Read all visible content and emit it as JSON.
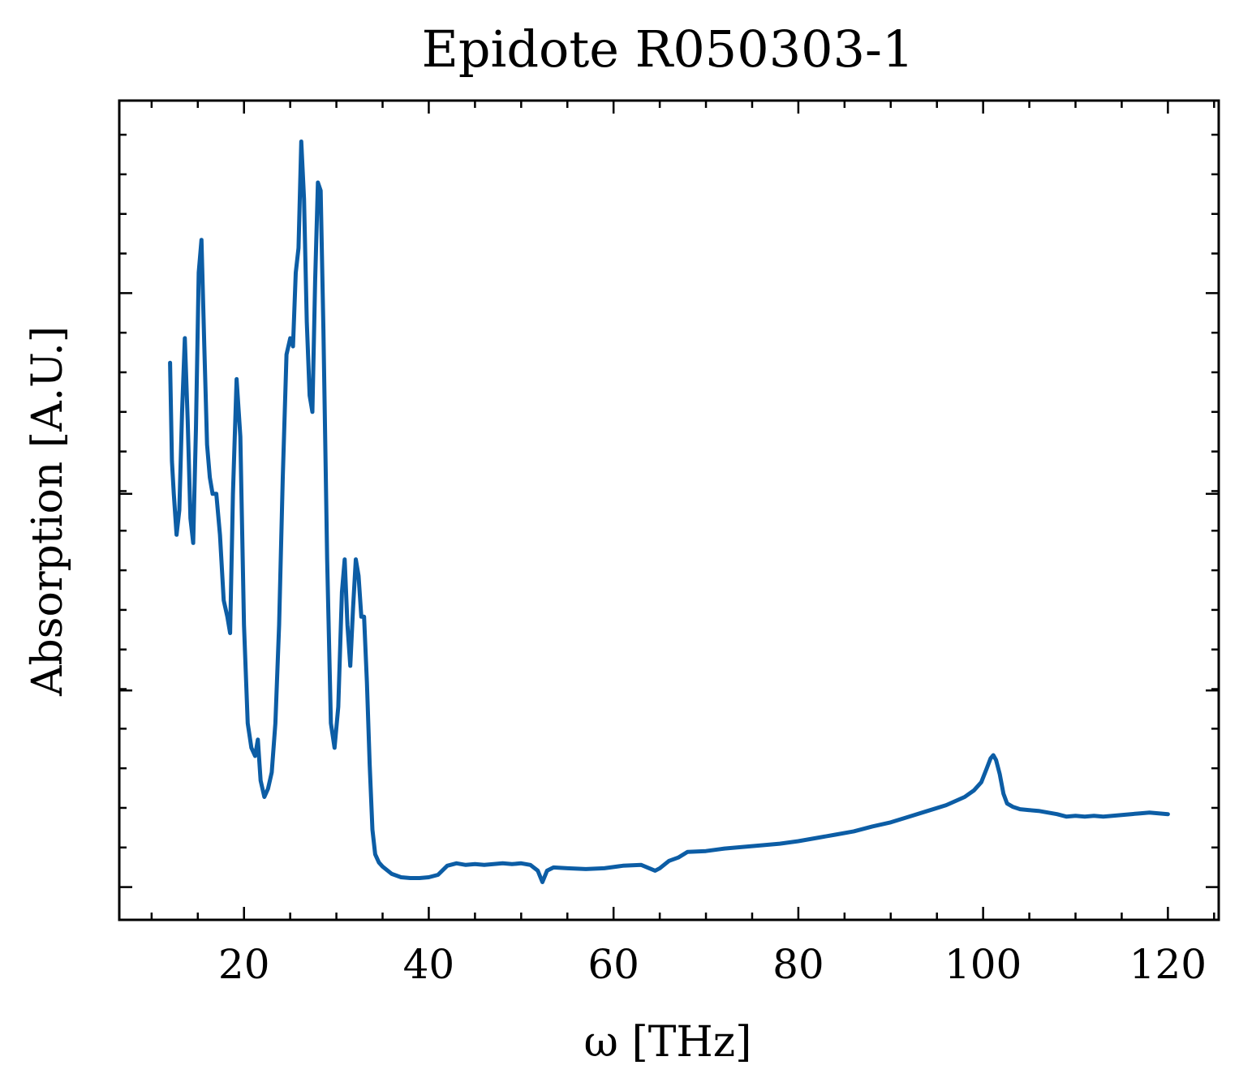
{
  "chart_data": {
    "type": "line",
    "title": "Epidote R050303-1",
    "xlabel": "ω [THz]",
    "ylabel": "Absorption [A.U.]",
    "xlim": [
      6.5,
      125.5
    ],
    "ylim": [
      0.0,
      1.0
    ],
    "xticks": [
      20,
      40,
      60,
      80,
      100,
      120
    ],
    "x_tick_labels": [
      "20",
      "40",
      "60",
      "80",
      "100",
      "120"
    ],
    "yticks_major": [
      0.04,
      0.28,
      0.52,
      0.765
    ],
    "y_tick_labels_shown": false,
    "grid": false,
    "legend": "none",
    "line_color": "#0C5DA5",
    "series": [
      {
        "points": [
          [
            12.0,
            0.68
          ],
          [
            12.2,
            0.56
          ],
          [
            12.4,
            0.52
          ],
          [
            12.7,
            0.47
          ],
          [
            13.0,
            0.5
          ],
          [
            13.3,
            0.62
          ],
          [
            13.6,
            0.71
          ],
          [
            13.9,
            0.61
          ],
          [
            14.2,
            0.49
          ],
          [
            14.5,
            0.46
          ],
          [
            14.8,
            0.6
          ],
          [
            15.1,
            0.79
          ],
          [
            15.4,
            0.83
          ],
          [
            15.7,
            0.7
          ],
          [
            16.0,
            0.58
          ],
          [
            16.3,
            0.54
          ],
          [
            16.6,
            0.52
          ],
          [
            17.0,
            0.52
          ],
          [
            17.4,
            0.47
          ],
          [
            17.8,
            0.39
          ],
          [
            18.2,
            0.37
          ],
          [
            18.5,
            0.35
          ],
          [
            18.8,
            0.52
          ],
          [
            19.2,
            0.66
          ],
          [
            19.6,
            0.59
          ],
          [
            20.0,
            0.36
          ],
          [
            20.4,
            0.24
          ],
          [
            20.8,
            0.21
          ],
          [
            21.2,
            0.2
          ],
          [
            21.5,
            0.22
          ],
          [
            21.8,
            0.17
          ],
          [
            22.2,
            0.15
          ],
          [
            22.6,
            0.16
          ],
          [
            23.0,
            0.18
          ],
          [
            23.4,
            0.24
          ],
          [
            23.8,
            0.36
          ],
          [
            24.2,
            0.54
          ],
          [
            24.6,
            0.69
          ],
          [
            25.0,
            0.71
          ],
          [
            25.3,
            0.7
          ],
          [
            25.6,
            0.79
          ],
          [
            25.9,
            0.82
          ],
          [
            26.2,
            0.95
          ],
          [
            26.5,
            0.88
          ],
          [
            26.8,
            0.73
          ],
          [
            27.1,
            0.64
          ],
          [
            27.4,
            0.62
          ],
          [
            27.7,
            0.78
          ],
          [
            28.0,
            0.9
          ],
          [
            28.3,
            0.89
          ],
          [
            28.6,
            0.72
          ],
          [
            29.0,
            0.44
          ],
          [
            29.4,
            0.24
          ],
          [
            29.8,
            0.21
          ],
          [
            30.2,
            0.26
          ],
          [
            30.6,
            0.4
          ],
          [
            30.9,
            0.44
          ],
          [
            31.2,
            0.36
          ],
          [
            31.5,
            0.31
          ],
          [
            31.8,
            0.38
          ],
          [
            32.1,
            0.44
          ],
          [
            32.4,
            0.42
          ],
          [
            32.7,
            0.37
          ],
          [
            33.0,
            0.37
          ],
          [
            33.3,
            0.29
          ],
          [
            33.6,
            0.19
          ],
          [
            33.9,
            0.11
          ],
          [
            34.2,
            0.08
          ],
          [
            34.6,
            0.07
          ],
          [
            35.0,
            0.065
          ],
          [
            36.0,
            0.056
          ],
          [
            37.0,
            0.052
          ],
          [
            38.0,
            0.051
          ],
          [
            39.0,
            0.051
          ],
          [
            40.0,
            0.052
          ],
          [
            41.0,
            0.055
          ],
          [
            42.0,
            0.066
          ],
          [
            43.0,
            0.069
          ],
          [
            44.0,
            0.067
          ],
          [
            45.0,
            0.068
          ],
          [
            46.0,
            0.067
          ],
          [
            47.0,
            0.068
          ],
          [
            48.0,
            0.069
          ],
          [
            49.0,
            0.068
          ],
          [
            50.0,
            0.069
          ],
          [
            51.0,
            0.067
          ],
          [
            51.8,
            0.06
          ],
          [
            52.3,
            0.046
          ],
          [
            52.8,
            0.06
          ],
          [
            53.5,
            0.064
          ],
          [
            55.0,
            0.063
          ],
          [
            57.0,
            0.062
          ],
          [
            59.0,
            0.063
          ],
          [
            61.0,
            0.066
          ],
          [
            63.0,
            0.067
          ],
          [
            64.5,
            0.06
          ],
          [
            65.0,
            0.063
          ],
          [
            66.0,
            0.072
          ],
          [
            67.0,
            0.076
          ],
          [
            68.0,
            0.083
          ],
          [
            70.0,
            0.084
          ],
          [
            72.0,
            0.087
          ],
          [
            74.0,
            0.089
          ],
          [
            76.0,
            0.091
          ],
          [
            78.0,
            0.093
          ],
          [
            80.0,
            0.096
          ],
          [
            82.0,
            0.1
          ],
          [
            84.0,
            0.104
          ],
          [
            86.0,
            0.108
          ],
          [
            88.0,
            0.114
          ],
          [
            90.0,
            0.119
          ],
          [
            92.0,
            0.126
          ],
          [
            94.0,
            0.133
          ],
          [
            96.0,
            0.14
          ],
          [
            98.0,
            0.15
          ],
          [
            99.0,
            0.158
          ],
          [
            99.8,
            0.168
          ],
          [
            100.4,
            0.185
          ],
          [
            100.8,
            0.197
          ],
          [
            101.1,
            0.201
          ],
          [
            101.4,
            0.195
          ],
          [
            101.8,
            0.178
          ],
          [
            102.2,
            0.154
          ],
          [
            102.6,
            0.142
          ],
          [
            103.2,
            0.138
          ],
          [
            104.0,
            0.135
          ],
          [
            105.0,
            0.134
          ],
          [
            106.0,
            0.133
          ],
          [
            107.0,
            0.131
          ],
          [
            108.0,
            0.129
          ],
          [
            109.0,
            0.126
          ],
          [
            110.0,
            0.127
          ],
          [
            111.0,
            0.126
          ],
          [
            112.0,
            0.127
          ],
          [
            113.0,
            0.126
          ],
          [
            114.0,
            0.127
          ],
          [
            115.0,
            0.128
          ],
          [
            116.0,
            0.129
          ],
          [
            117.0,
            0.13
          ],
          [
            118.0,
            0.131
          ],
          [
            119.0,
            0.13
          ],
          [
            120.0,
            0.129
          ]
        ]
      }
    ]
  }
}
